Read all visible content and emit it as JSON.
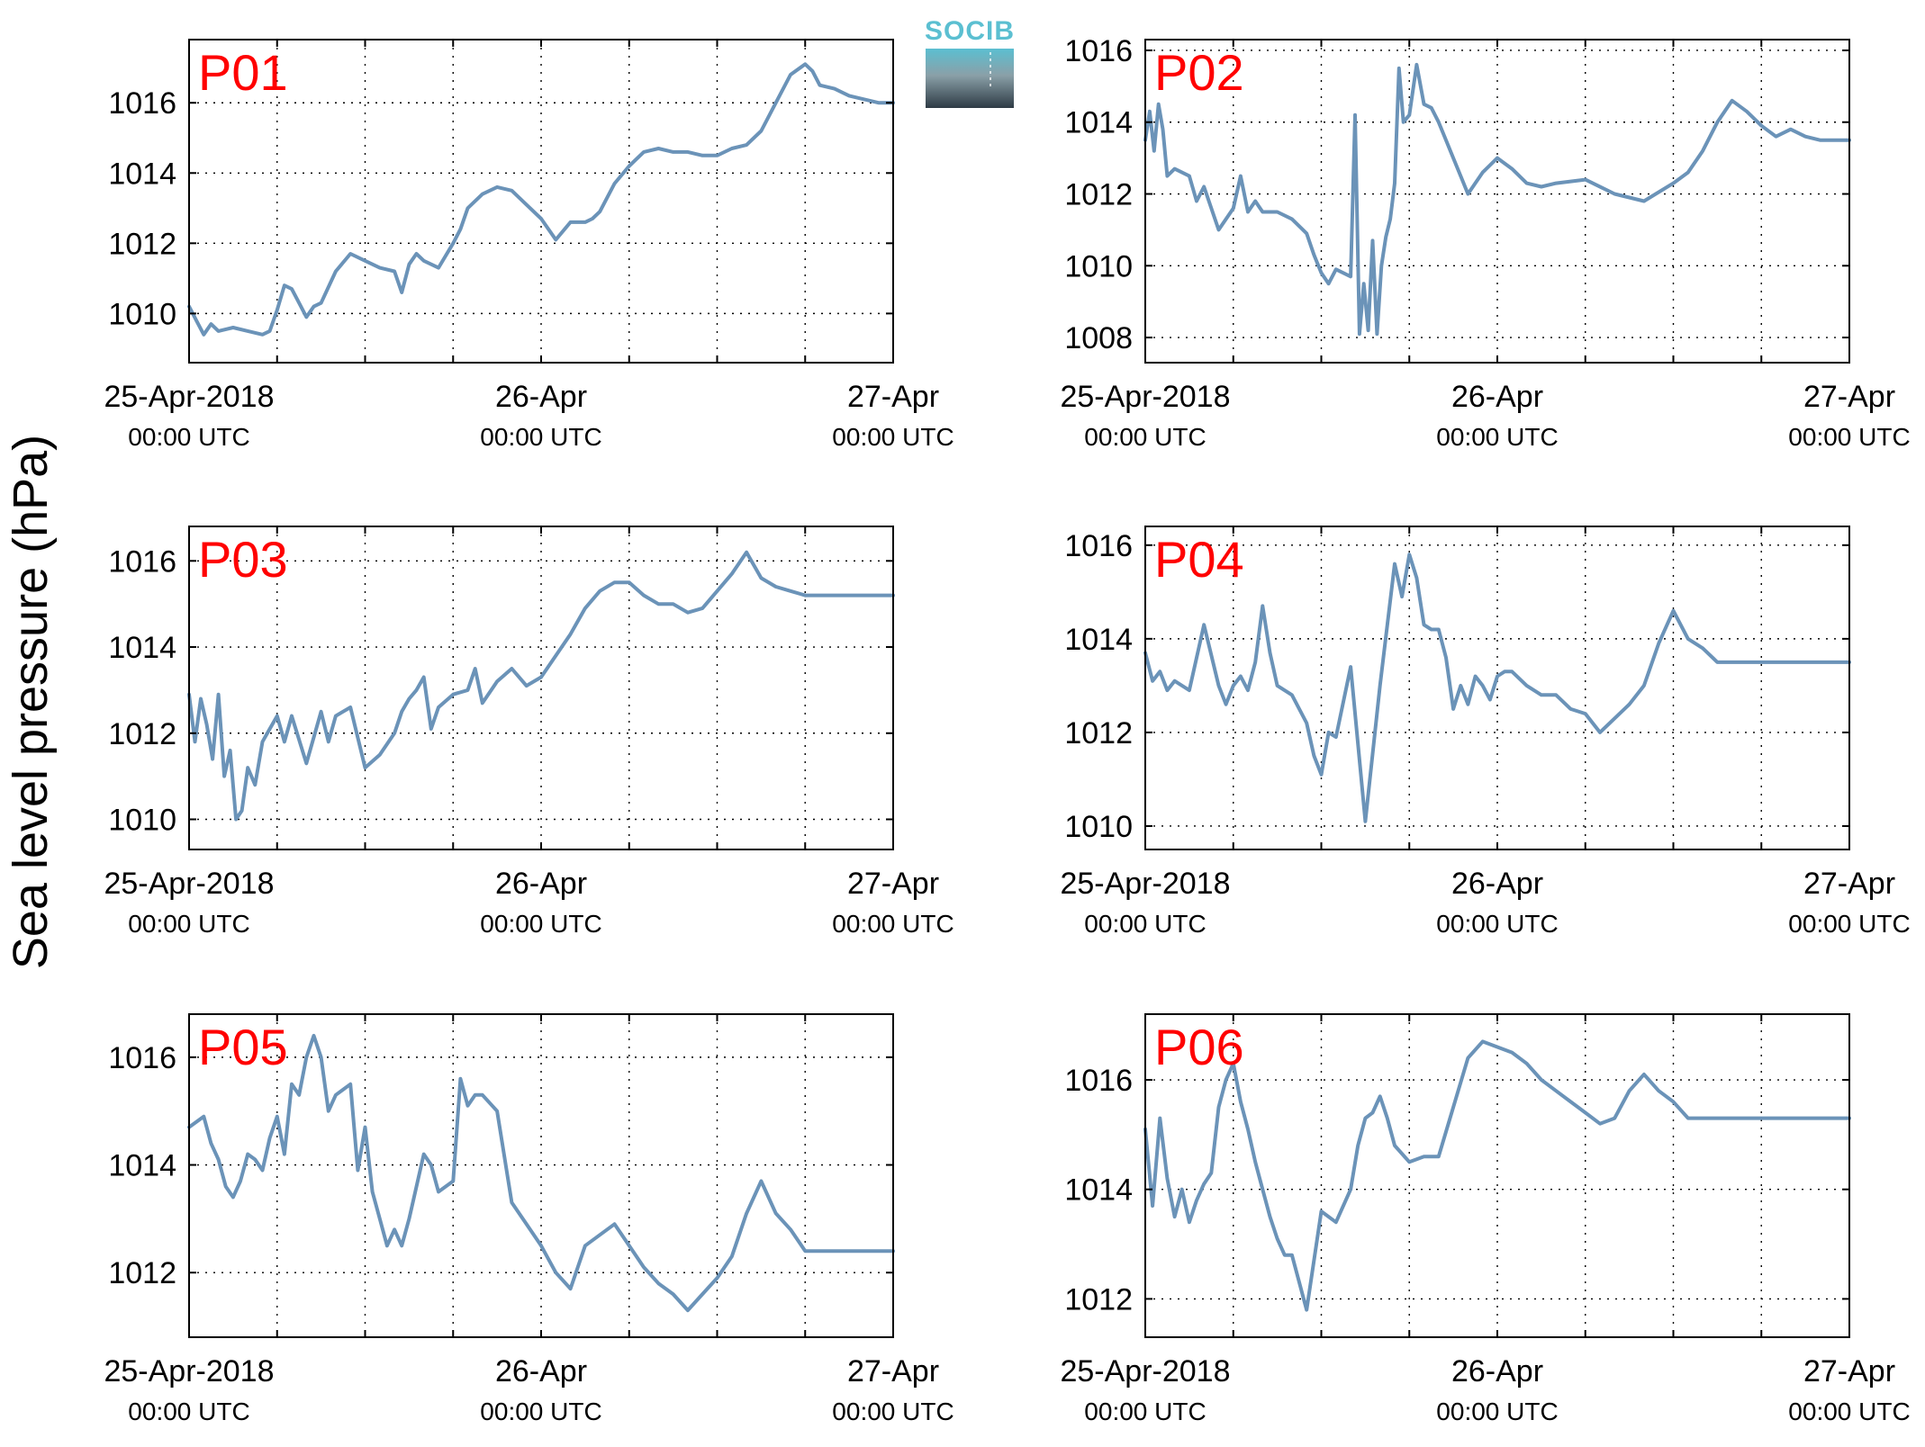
{
  "figure": {
    "ylabel": "Sea level pressure (hPa)",
    "logo_text": "SOCIB",
    "line_color": "#6b93b8",
    "label_color": "#ff0000",
    "logo_color": "#5bbfd1"
  },
  "chart_data": [
    {
      "type": "line",
      "title": "P01",
      "x_ticks": [
        {
          "line1": "25-Apr-2018",
          "line2": "00:00 UTC"
        },
        {
          "line1": "26-Apr",
          "line2": "00:00 UTC"
        },
        {
          "line1": "27-Apr",
          "line2": "00:00 UTC"
        }
      ],
      "x_unit": "hours since 25-Apr-2018 00:00 UTC",
      "xlim": [
        0,
        48
      ],
      "ylim": [
        1008.6,
        1017.8
      ],
      "yticks": [
        1010,
        1012,
        1014,
        1016
      ],
      "grid": true,
      "series": [
        {
          "x": [
            0,
            0.5,
            1,
            1.5,
            2,
            3,
            4,
            5,
            5.5,
            6,
            6.5,
            7,
            7.5,
            8,
            8.5,
            9,
            10,
            11,
            12,
            13,
            14,
            14.5,
            15,
            15.5,
            16,
            17,
            18,
            18.5,
            19,
            20,
            21,
            22,
            23,
            24,
            25,
            26,
            27,
            27.5,
            28,
            29,
            30,
            31,
            32,
            33,
            34,
            35,
            36,
            37,
            38,
            39,
            40,
            41,
            42,
            42.5,
            43,
            44,
            45,
            46,
            47,
            48
          ],
          "y": [
            1010.2,
            1009.8,
            1009.4,
            1009.7,
            1009.5,
            1009.6,
            1009.5,
            1009.4,
            1009.5,
            1010.1,
            1010.8,
            1010.7,
            1010.3,
            1009.9,
            1010.2,
            1010.3,
            1011.2,
            1011.7,
            1011.5,
            1011.3,
            1011.2,
            1010.6,
            1011.4,
            1011.7,
            1011.5,
            1011.3,
            1012.0,
            1012.4,
            1013.0,
            1013.4,
            1013.6,
            1013.5,
            1013.1,
            1012.7,
            1012.1,
            1012.6,
            1012.6,
            1012.7,
            1012.9,
            1013.7,
            1014.2,
            1014.6,
            1014.7,
            1014.6,
            1014.6,
            1014.5,
            1014.5,
            1014.7,
            1014.8,
            1015.2,
            1016.0,
            1016.8,
            1017.1,
            1016.9,
            1016.5,
            1016.4,
            1016.2,
            1016.1,
            1016.0,
            1016.0
          ]
        }
      ]
    },
    {
      "type": "line",
      "title": "P02",
      "x_ticks": [
        {
          "line1": "25-Apr-2018",
          "line2": "00:00 UTC"
        },
        {
          "line1": "26-Apr",
          "line2": "00:00 UTC"
        },
        {
          "line1": "27-Apr",
          "line2": "00:00 UTC"
        }
      ],
      "x_unit": "hours since 25-Apr-2018 00:00 UTC",
      "xlim": [
        0,
        48
      ],
      "ylim": [
        1007.3,
        1016.3
      ],
      "yticks": [
        1008,
        1010,
        1012,
        1014,
        1016
      ],
      "grid": true,
      "series": [
        {
          "x": [
            0,
            0.3,
            0.6,
            0.9,
            1.2,
            1.5,
            2,
            3,
            3.5,
            4,
            5,
            6,
            6.5,
            7,
            7.5,
            8,
            9,
            10,
            11,
            11.5,
            12,
            12.5,
            13,
            14,
            14.3,
            14.6,
            14.9,
            15.2,
            15.5,
            15.8,
            16.1,
            16.4,
            16.7,
            17,
            17.3,
            17.6,
            18,
            18.5,
            19,
            19.5,
            20,
            20.5,
            21,
            21.5,
            22,
            23,
            24,
            25,
            26,
            27,
            28,
            30,
            32,
            34,
            36,
            37,
            38,
            39,
            40,
            41,
            42,
            43,
            44,
            45,
            46,
            47,
            48
          ],
          "y": [
            1013.5,
            1014.3,
            1013.2,
            1014.5,
            1013.8,
            1012.5,
            1012.7,
            1012.5,
            1011.8,
            1012.2,
            1011.0,
            1011.6,
            1012.5,
            1011.5,
            1011.8,
            1011.5,
            1011.5,
            1011.3,
            1010.9,
            1010.3,
            1009.8,
            1009.5,
            1009.9,
            1009.7,
            1014.2,
            1008.1,
            1009.5,
            1008.2,
            1010.7,
            1008.1,
            1010.0,
            1010.8,
            1011.3,
            1012.3,
            1015.5,
            1014.0,
            1014.2,
            1015.6,
            1014.5,
            1014.4,
            1014.0,
            1013.5,
            1013.0,
            1012.5,
            1012.0,
            1012.6,
            1013.0,
            1012.7,
            1012.3,
            1012.2,
            1012.3,
            1012.4,
            1012.0,
            1011.8,
            1012.3,
            1012.6,
            1013.2,
            1014.0,
            1014.6,
            1014.3,
            1013.9,
            1013.6,
            1013.8,
            1013.6,
            1013.5,
            1013.5,
            1013.5
          ]
        }
      ]
    },
    {
      "type": "line",
      "title": "P03",
      "x_ticks": [
        {
          "line1": "25-Apr-2018",
          "line2": "00:00 UTC"
        },
        {
          "line1": "26-Apr",
          "line2": "00:00 UTC"
        },
        {
          "line1": "27-Apr",
          "line2": "00:00 UTC"
        }
      ],
      "x_unit": "hours since 25-Apr-2018 00:00 UTC",
      "xlim": [
        0,
        48
      ],
      "ylim": [
        1009.3,
        1016.8
      ],
      "yticks": [
        1010,
        1012,
        1014,
        1016
      ],
      "grid": true,
      "series": [
        {
          "x": [
            0,
            0.4,
            0.8,
            1.2,
            1.6,
            2,
            2.4,
            2.8,
            3.2,
            3.6,
            4,
            4.5,
            5,
            5.5,
            6,
            6.5,
            7,
            8,
            9,
            9.5,
            10,
            11,
            12,
            13,
            14,
            14.5,
            15,
            15.5,
            16,
            16.5,
            17,
            18,
            19,
            19.5,
            20,
            21,
            22,
            23,
            24,
            25,
            26,
            27,
            28,
            29,
            30,
            31,
            32,
            33,
            34,
            35,
            36,
            37,
            38,
            39,
            40,
            41,
            42,
            43,
            44,
            45,
            46,
            47,
            48
          ],
          "y": [
            1012.9,
            1011.8,
            1012.8,
            1012.2,
            1011.4,
            1012.9,
            1011.0,
            1011.6,
            1010.0,
            1010.2,
            1011.2,
            1010.8,
            1011.8,
            1012.1,
            1012.4,
            1011.8,
            1012.4,
            1011.3,
            1012.5,
            1011.8,
            1012.4,
            1012.6,
            1011.2,
            1011.5,
            1012.0,
            1012.5,
            1012.8,
            1013.0,
            1013.3,
            1012.1,
            1012.6,
            1012.9,
            1013.0,
            1013.5,
            1012.7,
            1013.2,
            1013.5,
            1013.1,
            1013.3,
            1013.8,
            1014.3,
            1014.9,
            1015.3,
            1015.5,
            1015.5,
            1015.2,
            1015.0,
            1015.0,
            1014.8,
            1014.9,
            1015.3,
            1015.7,
            1016.2,
            1015.6,
            1015.4,
            1015.3,
            1015.2,
            1015.2,
            1015.2,
            1015.2,
            1015.2,
            1015.2,
            1015.2
          ]
        }
      ]
    },
    {
      "type": "line",
      "title": "P04",
      "x_ticks": [
        {
          "line1": "25-Apr-2018",
          "line2": "00:00 UTC"
        },
        {
          "line1": "26-Apr",
          "line2": "00:00 UTC"
        },
        {
          "line1": "27-Apr",
          "line2": "00:00 UTC"
        }
      ],
      "x_unit": "hours since 25-Apr-2018 00:00 UTC",
      "xlim": [
        0,
        48
      ],
      "ylim": [
        1009.5,
        1016.4
      ],
      "yticks": [
        1010,
        1012,
        1014,
        1016
      ],
      "grid": true,
      "series": [
        {
          "x": [
            0,
            0.5,
            1,
            1.5,
            2,
            3,
            4,
            5,
            5.5,
            6,
            6.5,
            7,
            7.5,
            8,
            8.5,
            9,
            10,
            11,
            11.5,
            12,
            12.5,
            13,
            14,
            15,
            16,
            17,
            17.5,
            18,
            18.5,
            19,
            19.5,
            20,
            20.5,
            21,
            21.5,
            22,
            22.5,
            23,
            23.5,
            24,
            24.5,
            25,
            26,
            27,
            28,
            29,
            30,
            31,
            32,
            33,
            34,
            35,
            36,
            37,
            38,
            39,
            40,
            41,
            42,
            42.5,
            43,
            44,
            45,
            46,
            47,
            48
          ],
          "y": [
            1013.7,
            1013.1,
            1013.3,
            1012.9,
            1013.1,
            1012.9,
            1014.3,
            1013.0,
            1012.6,
            1013.0,
            1013.2,
            1012.9,
            1013.5,
            1014.7,
            1013.7,
            1013.0,
            1012.8,
            1012.2,
            1011.5,
            1011.1,
            1012.0,
            1011.9,
            1013.4,
            1010.1,
            1013.0,
            1015.6,
            1014.9,
            1015.8,
            1015.3,
            1014.3,
            1014.2,
            1014.2,
            1013.6,
            1012.5,
            1013.0,
            1012.6,
            1013.2,
            1013.0,
            1012.7,
            1013.2,
            1013.3,
            1013.3,
            1013.0,
            1012.8,
            1012.8,
            1012.5,
            1012.4,
            1012.0,
            1012.3,
            1012.6,
            1013.0,
            1013.9,
            1014.6,
            1014.0,
            1013.8,
            1013.5,
            1013.5,
            1013.5,
            1013.5,
            1013.5,
            1013.5,
            1013.5,
            1013.5,
            1013.5,
            1013.5,
            1013.5
          ]
        }
      ]
    },
    {
      "type": "line",
      "title": "P05",
      "x_ticks": [
        {
          "line1": "25-Apr-2018",
          "line2": "00:00 UTC"
        },
        {
          "line1": "26-Apr",
          "line2": "00:00 UTC"
        },
        {
          "line1": "27-Apr",
          "line2": "00:00 UTC"
        }
      ],
      "x_unit": "hours since 25-Apr-2018 00:00 UTC",
      "xlim": [
        0,
        48
      ],
      "ylim": [
        1010.8,
        1016.8
      ],
      "yticks": [
        1012,
        1014,
        1016
      ],
      "grid": true,
      "series": [
        {
          "x": [
            0,
            1,
            1.5,
            2,
            2.5,
            3,
            3.5,
            4,
            4.5,
            5,
            5.5,
            6,
            6.5,
            7,
            7.5,
            8,
            8.5,
            9,
            9.5,
            10,
            11,
            11.5,
            12,
            12.5,
            13,
            13.5,
            14,
            14.5,
            15,
            16,
            16.5,
            17,
            18,
            18.5,
            19,
            19.5,
            20,
            21,
            22,
            23,
            24,
            25,
            26,
            27,
            28,
            29,
            30,
            31,
            32,
            33,
            34,
            35,
            36,
            37,
            38,
            39,
            40,
            41,
            42,
            43,
            44,
            45,
            46,
            47,
            48
          ],
          "y": [
            1014.7,
            1014.9,
            1014.4,
            1014.1,
            1013.6,
            1013.4,
            1013.7,
            1014.2,
            1014.1,
            1013.9,
            1014.5,
            1014.9,
            1014.2,
            1015.5,
            1015.3,
            1016.0,
            1016.4,
            1016.0,
            1015.0,
            1015.3,
            1015.5,
            1013.9,
            1014.7,
            1013.5,
            1013.0,
            1012.5,
            1012.8,
            1012.5,
            1013.0,
            1014.2,
            1014.0,
            1013.5,
            1013.7,
            1015.6,
            1015.1,
            1015.3,
            1015.3,
            1015.0,
            1013.3,
            1012.9,
            1012.5,
            1012.0,
            1011.7,
            1012.5,
            1012.7,
            1012.9,
            1012.5,
            1012.1,
            1011.8,
            1011.6,
            1011.3,
            1011.6,
            1011.9,
            1012.3,
            1013.1,
            1013.7,
            1013.1,
            1012.8,
            1012.4,
            1012.4,
            1012.4,
            1012.4,
            1012.4,
            1012.4,
            1012.4
          ]
        }
      ]
    },
    {
      "type": "line",
      "title": "P06",
      "x_ticks": [
        {
          "line1": "25-Apr-2018",
          "line2": "00:00 UTC"
        },
        {
          "line1": "26-Apr",
          "line2": "00:00 UTC"
        },
        {
          "line1": "27-Apr",
          "line2": "00:00 UTC"
        }
      ],
      "x_unit": "hours since 25-Apr-2018 00:00 UTC",
      "xlim": [
        0,
        48
      ],
      "ylim": [
        1011.3,
        1017.2
      ],
      "yticks": [
        1012,
        1014,
        1016
      ],
      "grid": true,
      "series": [
        {
          "x": [
            0,
            0.5,
            1,
            1.5,
            2,
            2.5,
            3,
            3.5,
            4,
            4.5,
            5,
            5.5,
            6,
            6.5,
            7,
            7.5,
            8,
            8.5,
            9,
            9.5,
            10,
            11,
            12,
            13,
            14,
            14.5,
            15,
            15.5,
            16,
            16.5,
            17,
            18,
            19,
            20,
            21,
            22,
            23,
            24,
            25,
            26,
            27,
            28,
            29,
            30,
            31,
            32,
            33,
            34,
            35,
            36,
            37,
            38,
            39,
            40,
            41,
            42,
            43,
            44,
            45,
            46,
            47,
            48
          ],
          "y": [
            1015.1,
            1013.7,
            1015.3,
            1014.2,
            1013.5,
            1014.0,
            1013.4,
            1013.8,
            1014.1,
            1014.3,
            1015.5,
            1016.0,
            1016.3,
            1015.6,
            1015.1,
            1014.5,
            1014.0,
            1013.5,
            1013.1,
            1012.8,
            1012.8,
            1011.8,
            1013.6,
            1013.4,
            1014.0,
            1014.8,
            1015.3,
            1015.4,
            1015.7,
            1015.3,
            1014.8,
            1014.5,
            1014.6,
            1014.6,
            1015.5,
            1016.4,
            1016.7,
            1016.6,
            1016.5,
            1016.3,
            1016.0,
            1015.8,
            1015.6,
            1015.4,
            1015.2,
            1015.3,
            1015.8,
            1016.1,
            1015.8,
            1015.6,
            1015.3,
            1015.3,
            1015.3,
            1015.3,
            1015.3,
            1015.3,
            1015.3,
            1015.3,
            1015.3,
            1015.3,
            1015.3,
            1015.3
          ]
        }
      ]
    }
  ]
}
